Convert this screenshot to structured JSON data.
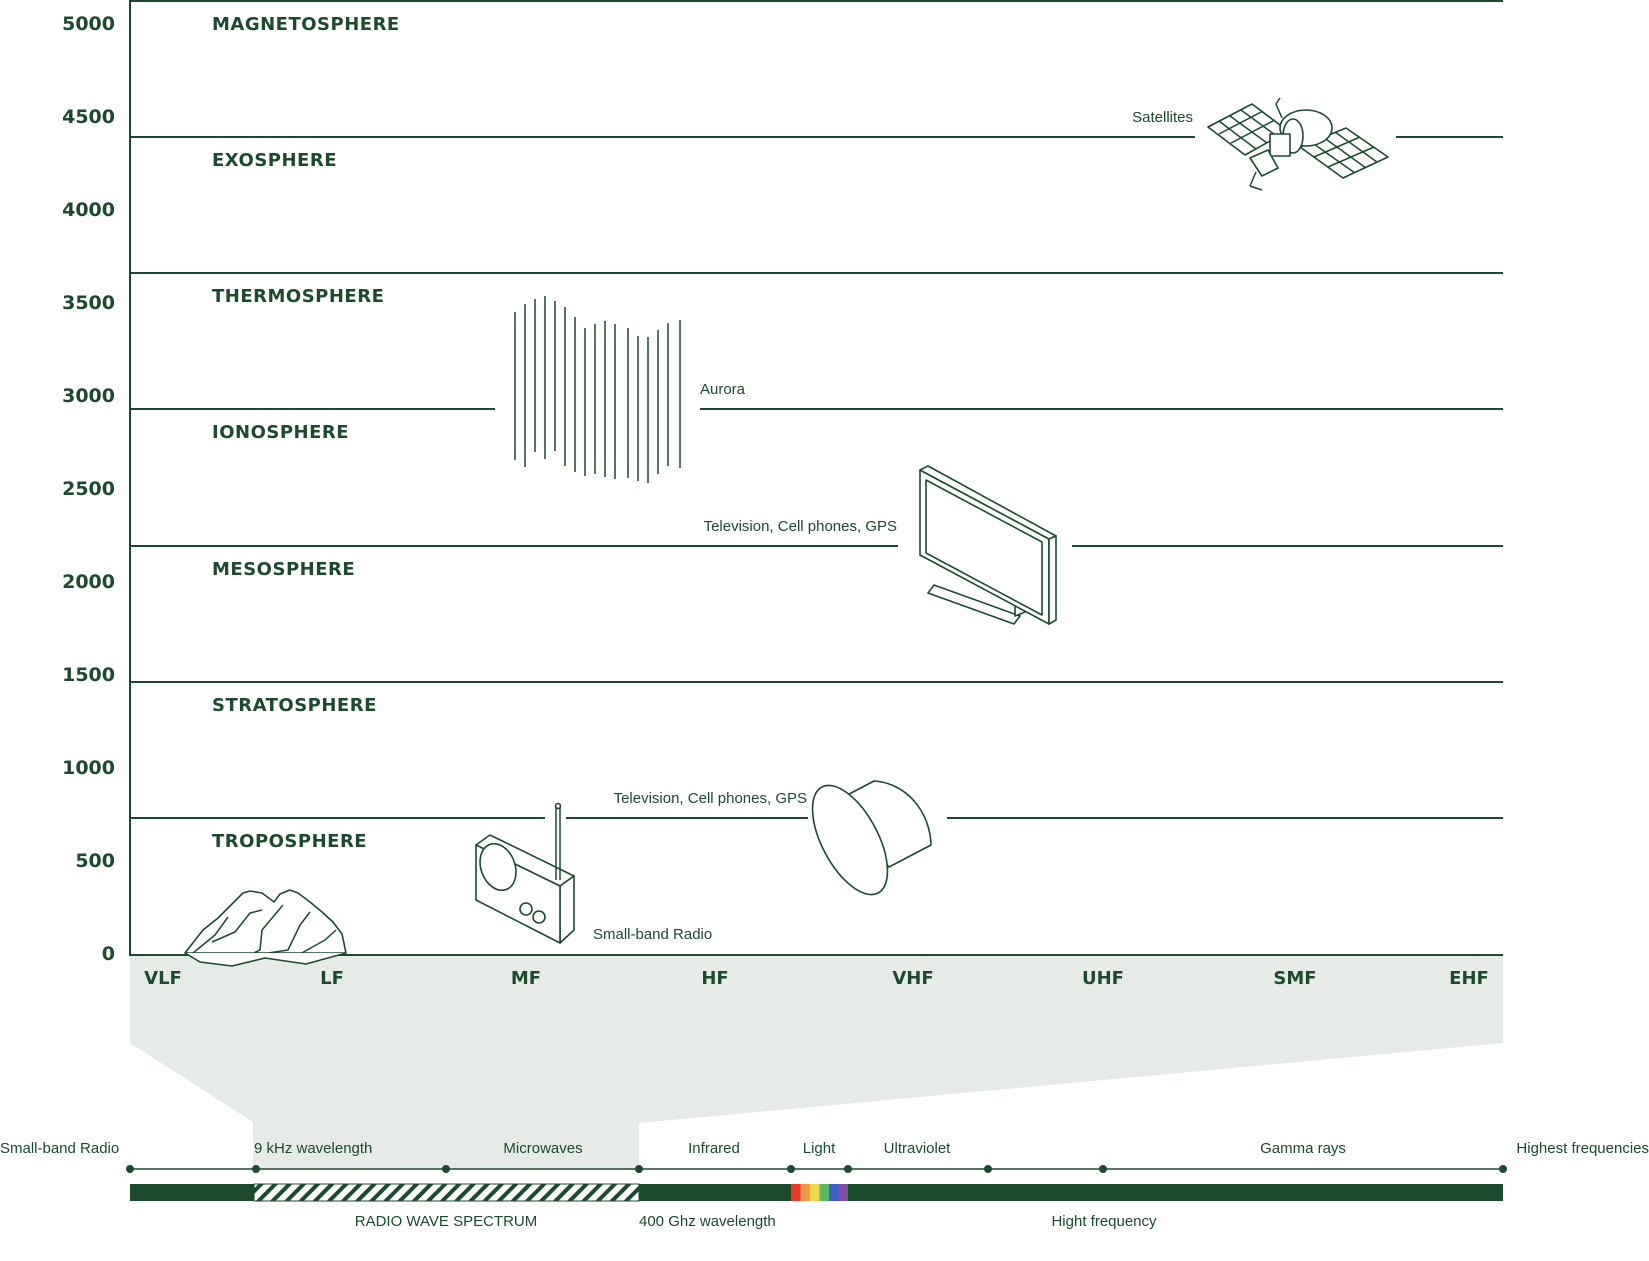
{
  "y_axis": {
    "ticks": [
      "5000",
      "4500",
      "4000",
      "3500",
      "3000",
      "2500",
      "2000",
      "1500",
      "1000",
      "500",
      "0"
    ]
  },
  "layers": [
    {
      "name": "MAGNETOSPHERE"
    },
    {
      "name": "EXOSPHERE"
    },
    {
      "name": "THERMOSPHERE"
    },
    {
      "name": "IONOSPHERE"
    },
    {
      "name": "MESOSPHERE"
    },
    {
      "name": "STRATOSPHERE"
    },
    {
      "name": "TROPOSPHERE"
    }
  ],
  "frequency_bands": [
    "VLF",
    "LF",
    "MF",
    "HF",
    "VHF",
    "UHF",
    "SMF",
    "EHF"
  ],
  "annotations": {
    "satellites": "Satellites",
    "aurora": "Aurora",
    "tv_upper": "Television, Cell phones, GPS",
    "tv_lower": "Television, Cell phones, GPS",
    "radio": "Small-band Radio"
  },
  "spectrum": {
    "top_labels": {
      "small_band_radio": "Small-band Radio",
      "khz": "9 kHz wavelength",
      "microwaves": "Microwaves",
      "infrared": "Infrared",
      "light": "Light",
      "ultraviolet": "Ultraviolet",
      "gamma": "Gamma rays",
      "highest": "Highest frequencies"
    },
    "bottom_labels": {
      "radio_wave": "RADIO WAVE SPECTRUM",
      "ghz": "400 Ghz wavelength",
      "high_freq": "Hight frequency"
    },
    "light_colors": [
      "#e63b2e",
      "#f2994a",
      "#f2d64a",
      "#5cb85c",
      "#3a5fcd",
      "#7b4fa8"
    ]
  },
  "colors": {
    "primary": "#1b4a2d",
    "shade": "#e6ebe7"
  }
}
